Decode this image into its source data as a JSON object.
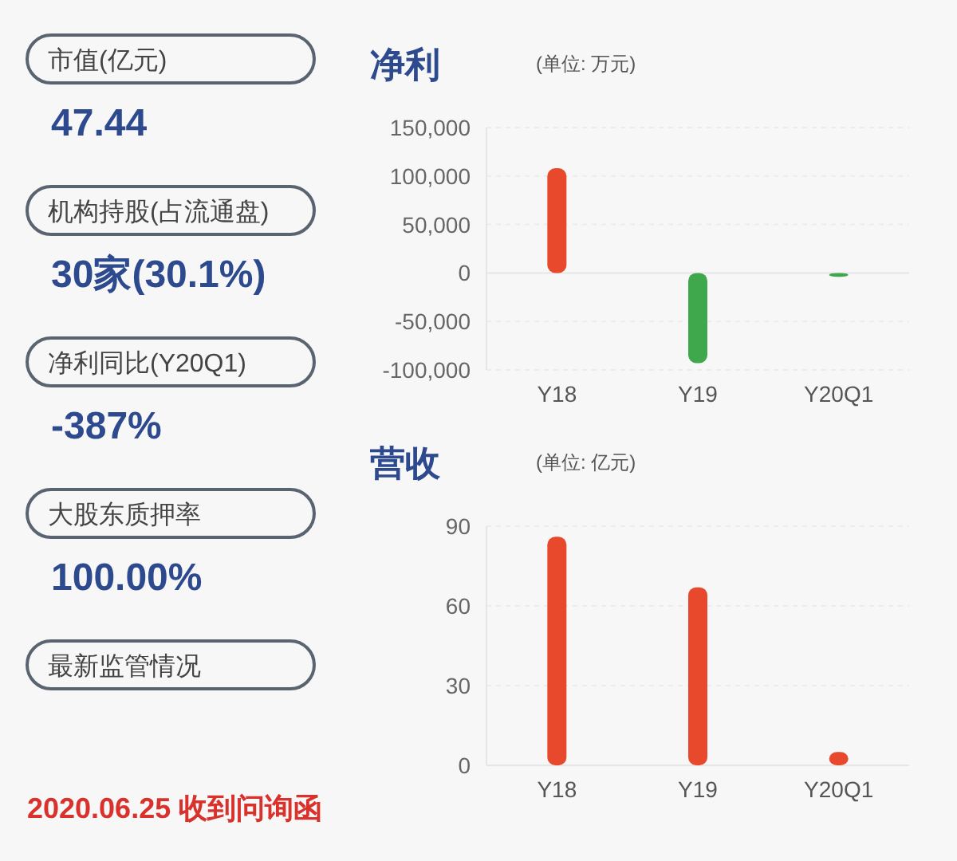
{
  "chart_data": [
    {
      "type": "other",
      "annotations": [
        "市值(亿元)",
        "47.44",
        "机构持股(占流通盘)",
        "30家(30.1%)",
        "净利同比(Y20Q1)",
        "-387%",
        "大股东质押率",
        "100.00%",
        "最新监管情况",
        "2020.06.25 收到问询函"
      ]
    },
    {
      "type": "bar",
      "title": "净利",
      "subtitle": "(单位: 万元)",
      "categories": [
        "Y18",
        "Y19",
        "Y20Q1"
      ],
      "values": [
        108000,
        -93000,
        -4000
      ],
      "colors": [
        "#e8482c",
        "#3fa84c",
        "#3fa84c"
      ],
      "ylim": [
        -100000,
        150000
      ],
      "yticks": [
        {
          "value": -100000,
          "label": "-100,000"
        },
        {
          "value": -50000,
          "label": "-50,000"
        },
        0,
        {
          "value": 50000,
          "label": "50,000"
        },
        {
          "value": 100000,
          "label": "100,000"
        },
        {
          "value": 150000,
          "label": "150,000"
        }
      ],
      "grid": "y"
    },
    {
      "type": "bar",
      "title": "营收",
      "subtitle": "(单位: 亿元)",
      "categories": [
        "Y18",
        "Y19",
        "Y20Q1"
      ],
      "values": [
        86,
        67,
        5
      ],
      "colors": [
        "#e8482c",
        "#e8482c",
        "#e8482c"
      ],
      "ylim": [
        0,
        90
      ],
      "yticks": [
        0,
        30,
        60,
        90
      ],
      "grid": "y"
    }
  ]
}
